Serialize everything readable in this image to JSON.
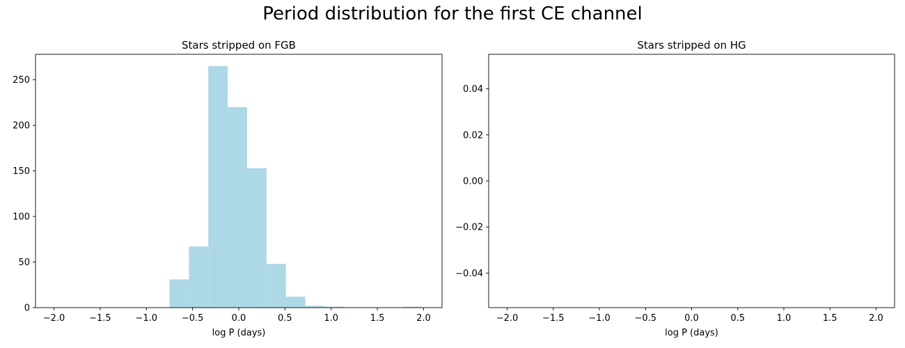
{
  "suptitle": "Period distribution for the first CE channel",
  "chart_data": [
    {
      "type": "bar",
      "title": "Stars stripped on FGB",
      "xlabel": "log P (days)",
      "ylabel": "",
      "xlim": [
        -2.2,
        2.2
      ],
      "ylim": [
        0,
        278
      ],
      "xticks": [
        -2.0,
        -1.5,
        -1.0,
        -0.5,
        0.0,
        0.5,
        1.0,
        1.5,
        2.0
      ],
      "xtick_labels": [
        "−2.0",
        "−1.5",
        "−1.0",
        "−0.5",
        "0.0",
        "0.5",
        "1.0",
        "1.5",
        "2.0"
      ],
      "yticks": [
        0,
        50,
        100,
        150,
        200,
        250
      ],
      "ytick_labels": [
        "0",
        "50",
        "100",
        "150",
        "200",
        "250"
      ],
      "color": "#add8e6",
      "bins": [
        {
          "x0": -0.75,
          "x1": -0.54,
          "value": 31
        },
        {
          "x0": -0.54,
          "x1": -0.33,
          "value": 67
        },
        {
          "x0": -0.33,
          "x1": -0.12,
          "value": 265
        },
        {
          "x0": -0.12,
          "x1": 0.09,
          "value": 220
        },
        {
          "x0": 0.09,
          "x1": 0.3,
          "value": 153
        },
        {
          "x0": 0.3,
          "x1": 0.51,
          "value": 48
        },
        {
          "x0": 0.51,
          "x1": 0.72,
          "value": 12
        },
        {
          "x0": 0.72,
          "x1": 0.93,
          "value": 2
        },
        {
          "x0": 0.93,
          "x1": 1.14,
          "value": 1
        },
        {
          "x0": 1.14,
          "x1": 1.35,
          "value": 0
        },
        {
          "x0": 1.35,
          "x1": 1.56,
          "value": 0
        },
        {
          "x0": 1.56,
          "x1": 1.77,
          "value": 0
        },
        {
          "x0": 1.77,
          "x1": 1.98,
          "value": 1
        }
      ]
    },
    {
      "type": "bar",
      "title": "Stars stripped on HG",
      "xlabel": "log P (days)",
      "ylabel": "",
      "xlim": [
        -2.2,
        2.2
      ],
      "ylim": [
        -0.055,
        0.055
      ],
      "xticks": [
        -2.0,
        -1.5,
        -1.0,
        -0.5,
        0.0,
        0.5,
        1.0,
        1.5,
        2.0
      ],
      "xtick_labels": [
        "−2.0",
        "−1.5",
        "−1.0",
        "−0.5",
        "0.0",
        "0.5",
        "1.0",
        "1.5",
        "2.0"
      ],
      "yticks": [
        -0.04,
        -0.02,
        0.0,
        0.02,
        0.04
      ],
      "ytick_labels": [
        "−0.04",
        "−0.02",
        "0.00",
        "0.02",
        "0.04"
      ],
      "color": "#add8e6",
      "bins": []
    }
  ]
}
